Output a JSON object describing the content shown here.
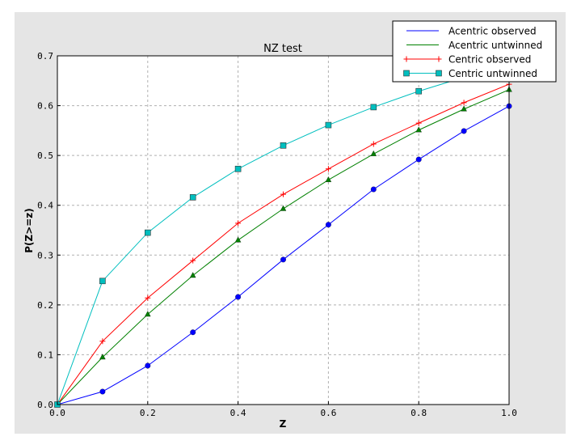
{
  "chart_data": {
    "type": "line",
    "title": "NZ test",
    "xlabel": "Z",
    "ylabel": "P(Z>=z)",
    "xlim": [
      0,
      1.0
    ],
    "ylim": [
      0,
      0.7
    ],
    "grid": true,
    "legend_position": "top-right",
    "xticks": [
      "0.0",
      "0.2",
      "0.4",
      "0.6",
      "0.8",
      "1.0"
    ],
    "yticks": [
      "0.0",
      "0.1",
      "0.2",
      "0.3",
      "0.4",
      "0.5",
      "0.6",
      "0.7"
    ],
    "x": [
      0.0,
      0.1,
      0.2,
      0.3,
      0.4,
      0.5,
      0.6,
      0.7,
      0.8,
      0.9,
      1.0
    ],
    "series": [
      {
        "name": "Acentric observed",
        "color": "#0000ff",
        "marker": "circle",
        "values": [
          0.0,
          0.026,
          0.078,
          0.145,
          0.216,
          0.291,
          0.361,
          0.432,
          0.492,
          0.549,
          0.599
        ]
      },
      {
        "name": "Acentric untwinned",
        "color": "#008000",
        "marker": "triangle",
        "values": [
          0.0,
          0.095,
          0.181,
          0.259,
          0.33,
          0.393,
          0.451,
          0.503,
          0.551,
          0.593,
          0.632
        ]
      },
      {
        "name": "Centric observed",
        "color": "#ff0000",
        "marker": "plus",
        "values": [
          0.0,
          0.127,
          0.214,
          0.289,
          0.364,
          0.422,
          0.473,
          0.523,
          0.565,
          0.606,
          0.643
        ]
      },
      {
        "name": "Centric untwinned",
        "color": "#00bfbf",
        "marker": "square",
        "values": [
          0.0,
          0.248,
          0.345,
          0.416,
          0.473,
          0.52,
          0.561,
          0.597,
          0.629,
          0.657,
          0.683
        ]
      }
    ]
  }
}
